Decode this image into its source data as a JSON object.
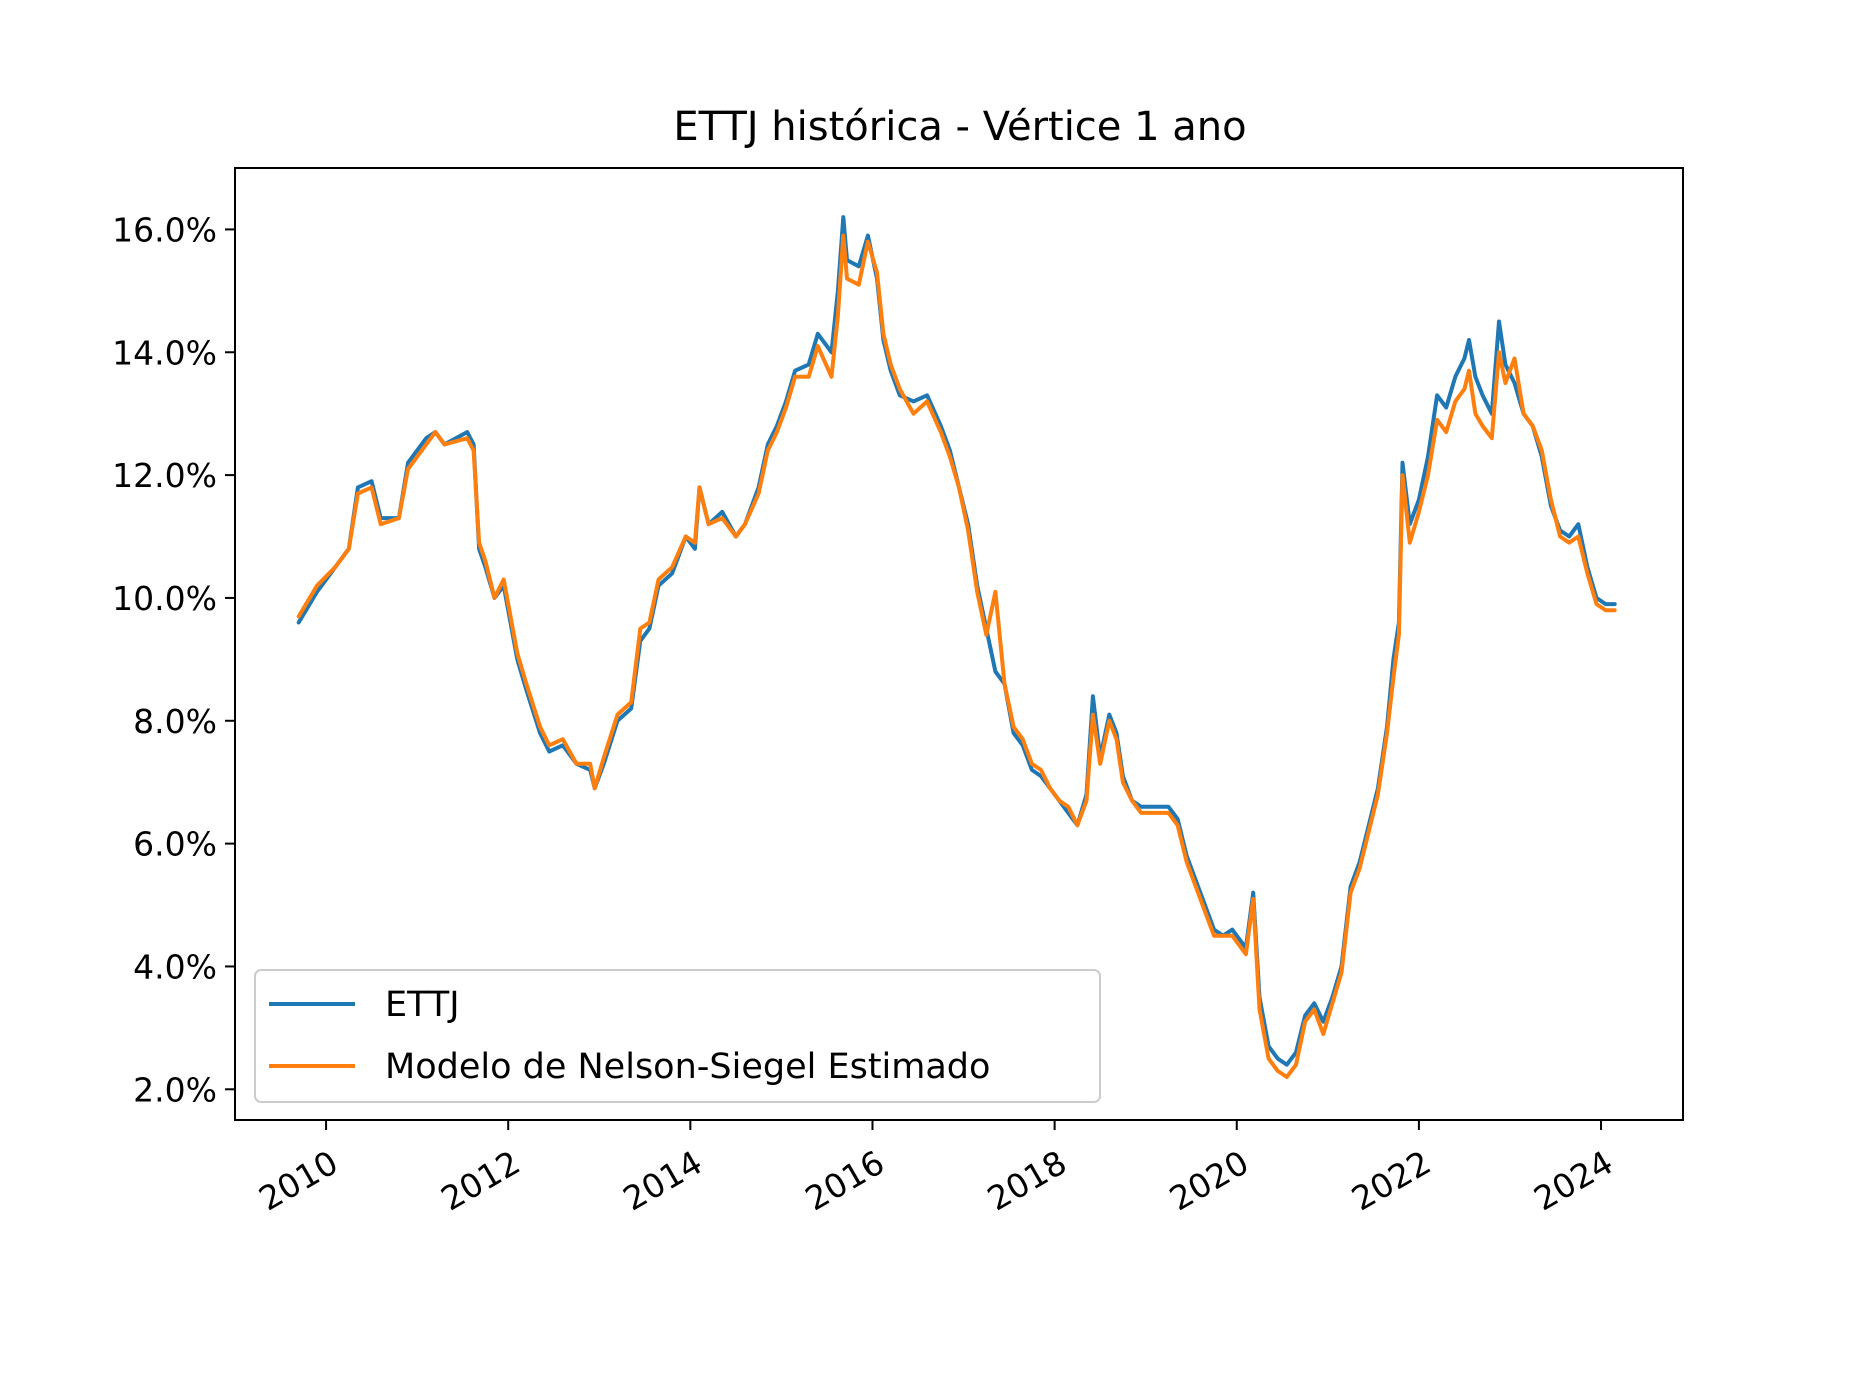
{
  "chart_data": {
    "type": "line",
    "title": "ETTJ histórica - Vértice 1 ano",
    "xlabel": "",
    "ylabel": "",
    "xlim": [
      2009.0,
      2024.9
    ],
    "ylim": [
      1.5,
      17.0
    ],
    "x_ticks": [
      "2010",
      "2012",
      "2014",
      "2016",
      "2018",
      "2020",
      "2022",
      "2024"
    ],
    "y_ticks": [
      "2.0%",
      "4.0%",
      "6.0%",
      "8.0%",
      "10.0%",
      "12.0%",
      "14.0%",
      "16.0%"
    ],
    "grid": false,
    "legend_position": "lower-left",
    "series": [
      {
        "name": "ETTJ",
        "color": "#1f77b4",
        "points": [
          [
            2009.7,
            9.6
          ],
          [
            2009.9,
            10.1
          ],
          [
            2010.1,
            10.5
          ],
          [
            2010.25,
            10.8
          ],
          [
            2010.35,
            11.8
          ],
          [
            2010.5,
            11.9
          ],
          [
            2010.6,
            11.3
          ],
          [
            2010.8,
            11.3
          ],
          [
            2010.9,
            12.2
          ],
          [
            2011.1,
            12.6
          ],
          [
            2011.2,
            12.7
          ],
          [
            2011.3,
            12.5
          ],
          [
            2011.55,
            12.7
          ],
          [
            2011.62,
            12.5
          ],
          [
            2011.68,
            10.8
          ],
          [
            2011.75,
            10.5
          ],
          [
            2011.85,
            10.0
          ],
          [
            2011.95,
            10.2
          ],
          [
            2012.1,
            9.0
          ],
          [
            2012.2,
            8.5
          ],
          [
            2012.35,
            7.8
          ],
          [
            2012.45,
            7.5
          ],
          [
            2012.6,
            7.6
          ],
          [
            2012.75,
            7.3
          ],
          [
            2012.9,
            7.2
          ],
          [
            2012.95,
            6.9
          ],
          [
            2013.05,
            7.3
          ],
          [
            2013.2,
            8.0
          ],
          [
            2013.35,
            8.2
          ],
          [
            2013.45,
            9.3
          ],
          [
            2013.55,
            9.5
          ],
          [
            2013.65,
            10.2
          ],
          [
            2013.8,
            10.4
          ],
          [
            2013.95,
            11.0
          ],
          [
            2014.05,
            10.8
          ],
          [
            2014.1,
            11.8
          ],
          [
            2014.2,
            11.2
          ],
          [
            2014.35,
            11.4
          ],
          [
            2014.5,
            11.0
          ],
          [
            2014.6,
            11.2
          ],
          [
            2014.75,
            11.8
          ],
          [
            2014.85,
            12.5
          ],
          [
            2014.95,
            12.8
          ],
          [
            2015.05,
            13.2
          ],
          [
            2015.15,
            13.7
          ],
          [
            2015.3,
            13.8
          ],
          [
            2015.4,
            14.3
          ],
          [
            2015.55,
            14.0
          ],
          [
            2015.62,
            15.0
          ],
          [
            2015.68,
            16.2
          ],
          [
            2015.72,
            15.5
          ],
          [
            2015.85,
            15.4
          ],
          [
            2015.95,
            15.9
          ],
          [
            2016.05,
            15.2
          ],
          [
            2016.12,
            14.2
          ],
          [
            2016.2,
            13.7
          ],
          [
            2016.3,
            13.3
          ],
          [
            2016.45,
            13.2
          ],
          [
            2016.6,
            13.3
          ],
          [
            2016.75,
            12.8
          ],
          [
            2016.85,
            12.4
          ],
          [
            2016.95,
            11.8
          ],
          [
            2017.05,
            11.2
          ],
          [
            2017.15,
            10.2
          ],
          [
            2017.25,
            9.5
          ],
          [
            2017.35,
            8.8
          ],
          [
            2017.45,
            8.6
          ],
          [
            2017.55,
            7.8
          ],
          [
            2017.65,
            7.6
          ],
          [
            2017.75,
            7.2
          ],
          [
            2017.85,
            7.1
          ],
          [
            2017.95,
            6.9
          ],
          [
            2018.05,
            6.7
          ],
          [
            2018.15,
            6.5
          ],
          [
            2018.25,
            6.3
          ],
          [
            2018.35,
            6.8
          ],
          [
            2018.42,
            8.4
          ],
          [
            2018.5,
            7.4
          ],
          [
            2018.6,
            8.1
          ],
          [
            2018.68,
            7.8
          ],
          [
            2018.75,
            7.1
          ],
          [
            2018.85,
            6.7
          ],
          [
            2018.95,
            6.6
          ],
          [
            2019.1,
            6.6
          ],
          [
            2019.25,
            6.6
          ],
          [
            2019.35,
            6.4
          ],
          [
            2019.45,
            5.8
          ],
          [
            2019.55,
            5.4
          ],
          [
            2019.65,
            5.0
          ],
          [
            2019.75,
            4.6
          ],
          [
            2019.85,
            4.5
          ],
          [
            2019.95,
            4.6
          ],
          [
            2020.1,
            4.3
          ],
          [
            2020.18,
            5.2
          ],
          [
            2020.25,
            3.5
          ],
          [
            2020.35,
            2.7
          ],
          [
            2020.45,
            2.5
          ],
          [
            2020.55,
            2.4
          ],
          [
            2020.65,
            2.6
          ],
          [
            2020.75,
            3.2
          ],
          [
            2020.85,
            3.4
          ],
          [
            2020.95,
            3.1
          ],
          [
            2021.05,
            3.5
          ],
          [
            2021.15,
            4.0
          ],
          [
            2021.25,
            5.3
          ],
          [
            2021.35,
            5.7
          ],
          [
            2021.45,
            6.3
          ],
          [
            2021.55,
            6.9
          ],
          [
            2021.65,
            7.9
          ],
          [
            2021.72,
            9.0
          ],
          [
            2021.78,
            9.6
          ],
          [
            2021.82,
            12.2
          ],
          [
            2021.9,
            11.2
          ],
          [
            2022.0,
            11.6
          ],
          [
            2022.1,
            12.3
          ],
          [
            2022.2,
            13.3
          ],
          [
            2022.3,
            13.1
          ],
          [
            2022.4,
            13.6
          ],
          [
            2022.5,
            13.9
          ],
          [
            2022.55,
            14.2
          ],
          [
            2022.62,
            13.6
          ],
          [
            2022.7,
            13.3
          ],
          [
            2022.8,
            13.0
          ],
          [
            2022.88,
            14.5
          ],
          [
            2022.95,
            13.8
          ],
          [
            2023.05,
            13.5
          ],
          [
            2023.15,
            13.0
          ],
          [
            2023.25,
            12.8
          ],
          [
            2023.35,
            12.3
          ],
          [
            2023.45,
            11.5
          ],
          [
            2023.55,
            11.1
          ],
          [
            2023.65,
            11.0
          ],
          [
            2023.75,
            11.2
          ],
          [
            2023.85,
            10.5
          ],
          [
            2023.95,
            10.0
          ],
          [
            2024.05,
            9.9
          ],
          [
            2024.15,
            9.9
          ]
        ]
      },
      {
        "name": "Modelo de Nelson-Siegel Estimado",
        "color": "#ff7f0e",
        "points": [
          [
            2009.7,
            9.7
          ],
          [
            2009.9,
            10.2
          ],
          [
            2010.1,
            10.5
          ],
          [
            2010.25,
            10.8
          ],
          [
            2010.35,
            11.7
          ],
          [
            2010.5,
            11.8
          ],
          [
            2010.6,
            11.2
          ],
          [
            2010.8,
            11.3
          ],
          [
            2010.9,
            12.1
          ],
          [
            2011.1,
            12.5
          ],
          [
            2011.2,
            12.7
          ],
          [
            2011.3,
            12.5
          ],
          [
            2011.55,
            12.6
          ],
          [
            2011.62,
            12.4
          ],
          [
            2011.68,
            10.9
          ],
          [
            2011.75,
            10.6
          ],
          [
            2011.85,
            10.0
          ],
          [
            2011.95,
            10.3
          ],
          [
            2012.1,
            9.1
          ],
          [
            2012.2,
            8.6
          ],
          [
            2012.35,
            7.9
          ],
          [
            2012.45,
            7.6
          ],
          [
            2012.6,
            7.7
          ],
          [
            2012.75,
            7.3
          ],
          [
            2012.9,
            7.3
          ],
          [
            2012.95,
            6.9
          ],
          [
            2013.05,
            7.4
          ],
          [
            2013.2,
            8.1
          ],
          [
            2013.35,
            8.3
          ],
          [
            2013.45,
            9.5
          ],
          [
            2013.55,
            9.6
          ],
          [
            2013.65,
            10.3
          ],
          [
            2013.8,
            10.5
          ],
          [
            2013.95,
            11.0
          ],
          [
            2014.05,
            10.9
          ],
          [
            2014.1,
            11.8
          ],
          [
            2014.2,
            11.2
          ],
          [
            2014.35,
            11.3
          ],
          [
            2014.5,
            11.0
          ],
          [
            2014.6,
            11.2
          ],
          [
            2014.75,
            11.7
          ],
          [
            2014.85,
            12.4
          ],
          [
            2014.95,
            12.7
          ],
          [
            2015.05,
            13.1
          ],
          [
            2015.15,
            13.6
          ],
          [
            2015.3,
            13.6
          ],
          [
            2015.4,
            14.1
          ],
          [
            2015.55,
            13.6
          ],
          [
            2015.62,
            14.6
          ],
          [
            2015.68,
            15.9
          ],
          [
            2015.72,
            15.2
          ],
          [
            2015.85,
            15.1
          ],
          [
            2015.95,
            15.8
          ],
          [
            2016.05,
            15.3
          ],
          [
            2016.12,
            14.3
          ],
          [
            2016.2,
            13.8
          ],
          [
            2016.3,
            13.4
          ],
          [
            2016.45,
            13.0
          ],
          [
            2016.6,
            13.2
          ],
          [
            2016.75,
            12.7
          ],
          [
            2016.85,
            12.3
          ],
          [
            2016.95,
            11.8
          ],
          [
            2017.05,
            11.1
          ],
          [
            2017.15,
            10.1
          ],
          [
            2017.25,
            9.4
          ],
          [
            2017.35,
            10.1
          ],
          [
            2017.45,
            8.6
          ],
          [
            2017.55,
            7.9
          ],
          [
            2017.65,
            7.7
          ],
          [
            2017.75,
            7.3
          ],
          [
            2017.85,
            7.2
          ],
          [
            2017.95,
            6.9
          ],
          [
            2018.05,
            6.7
          ],
          [
            2018.15,
            6.6
          ],
          [
            2018.25,
            6.3
          ],
          [
            2018.35,
            6.7
          ],
          [
            2018.42,
            8.1
          ],
          [
            2018.5,
            7.3
          ],
          [
            2018.6,
            8.0
          ],
          [
            2018.68,
            7.7
          ],
          [
            2018.75,
            7.0
          ],
          [
            2018.85,
            6.7
          ],
          [
            2018.95,
            6.5
          ],
          [
            2019.1,
            6.5
          ],
          [
            2019.25,
            6.5
          ],
          [
            2019.35,
            6.3
          ],
          [
            2019.45,
            5.7
          ],
          [
            2019.55,
            5.3
          ],
          [
            2019.65,
            4.9
          ],
          [
            2019.75,
            4.5
          ],
          [
            2019.85,
            4.5
          ],
          [
            2019.95,
            4.5
          ],
          [
            2020.1,
            4.2
          ],
          [
            2020.18,
            5.1
          ],
          [
            2020.25,
            3.3
          ],
          [
            2020.35,
            2.5
          ],
          [
            2020.45,
            2.3
          ],
          [
            2020.55,
            2.2
          ],
          [
            2020.65,
            2.4
          ],
          [
            2020.75,
            3.1
          ],
          [
            2020.85,
            3.3
          ],
          [
            2020.95,
            2.9
          ],
          [
            2021.05,
            3.4
          ],
          [
            2021.15,
            3.9
          ],
          [
            2021.25,
            5.2
          ],
          [
            2021.35,
            5.6
          ],
          [
            2021.45,
            6.2
          ],
          [
            2021.55,
            6.8
          ],
          [
            2021.65,
            7.8
          ],
          [
            2021.72,
            8.7
          ],
          [
            2021.78,
            9.4
          ],
          [
            2021.82,
            12.0
          ],
          [
            2021.9,
            10.9
          ],
          [
            2022.0,
            11.4
          ],
          [
            2022.1,
            12.0
          ],
          [
            2022.2,
            12.9
          ],
          [
            2022.3,
            12.7
          ],
          [
            2022.4,
            13.2
          ],
          [
            2022.5,
            13.4
          ],
          [
            2022.55,
            13.7
          ],
          [
            2022.62,
            13.0
          ],
          [
            2022.7,
            12.8
          ],
          [
            2022.8,
            12.6
          ],
          [
            2022.88,
            14.0
          ],
          [
            2022.95,
            13.5
          ],
          [
            2023.05,
            13.9
          ],
          [
            2023.15,
            13.0
          ],
          [
            2023.25,
            12.8
          ],
          [
            2023.35,
            12.4
          ],
          [
            2023.45,
            11.6
          ],
          [
            2023.55,
            11.0
          ],
          [
            2023.65,
            10.9
          ],
          [
            2023.75,
            11.0
          ],
          [
            2023.85,
            10.4
          ],
          [
            2023.95,
            9.9
          ],
          [
            2024.05,
            9.8
          ],
          [
            2024.15,
            9.8
          ]
        ]
      }
    ]
  }
}
